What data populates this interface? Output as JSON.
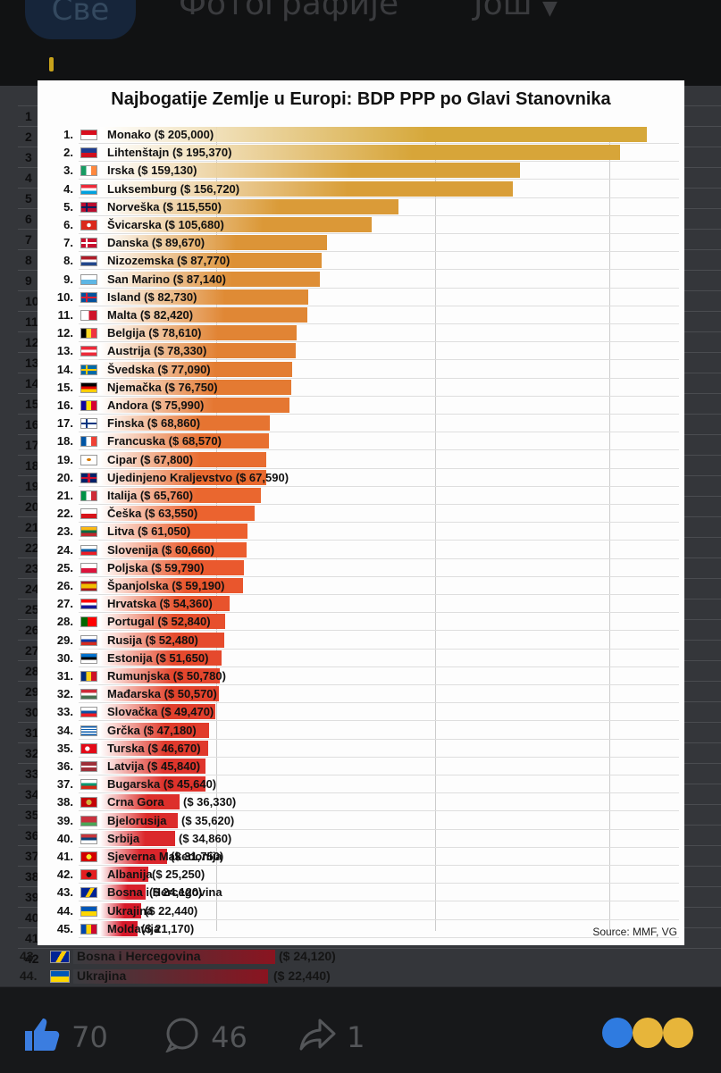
{
  "tabs": {
    "all": "Све",
    "photos": "Фотографије",
    "more": "Још"
  },
  "chart_data": {
    "type": "bar",
    "title": "Najbogatije Zemlje u Europi: BDP PPP po Glavi Stanovnika",
    "source": "Source: MMF, VG",
    "max": 205000,
    "items": [
      {
        "rank": "1.",
        "label": "Monako ($ 205,000)",
        "value": 205000,
        "flag": "monaco"
      },
      {
        "rank": "2.",
        "label": "Lihtenštajn ($ 195,370)",
        "value": 195370,
        "flag": "liechtenstein"
      },
      {
        "rank": "3.",
        "label": "Irska ($ 159,130)",
        "value": 159130,
        "flag": "ireland"
      },
      {
        "rank": "4.",
        "label": "Luksemburg ($ 156,720)",
        "value": 156720,
        "flag": "luxembourg"
      },
      {
        "rank": "5.",
        "label": "Norveška ($ 115,550)",
        "value": 115550,
        "flag": "norway"
      },
      {
        "rank": "6.",
        "label": "Švicarska ($ 105,680)",
        "value": 105680,
        "flag": "switzerland"
      },
      {
        "rank": "7.",
        "label": "Danska ($ 89,670)",
        "value": 89670,
        "flag": "denmark"
      },
      {
        "rank": "8.",
        "label": "Nizozemska ($ 87,770)",
        "value": 87770,
        "flag": "netherlands"
      },
      {
        "rank": "9.",
        "label": "San Marino ($ 87,140)",
        "value": 87140,
        "flag": "sanmarino"
      },
      {
        "rank": "10.",
        "label": "Island ($ 82,730)",
        "value": 82730,
        "flag": "iceland"
      },
      {
        "rank": "11.",
        "label": "Malta ($ 82,420)",
        "value": 82420,
        "flag": "malta"
      },
      {
        "rank": "12.",
        "label": "Belgija ($ 78,610)",
        "value": 78610,
        "flag": "belgium"
      },
      {
        "rank": "13.",
        "label": "Austrija ($ 78,330)",
        "value": 78330,
        "flag": "austria"
      },
      {
        "rank": "14.",
        "label": "Švedska ($ 77,090)",
        "value": 77090,
        "flag": "sweden"
      },
      {
        "rank": "15.",
        "label": "Njemačka ($ 76,750)",
        "value": 76750,
        "flag": "germany"
      },
      {
        "rank": "16.",
        "label": "Andora ($ 75,990)",
        "value": 75990,
        "flag": "andorra"
      },
      {
        "rank": "17.",
        "label": "Finska ($ 68,860)",
        "value": 68860,
        "flag": "finland"
      },
      {
        "rank": "18.",
        "label": "Francuska ($ 68,570)",
        "value": 68570,
        "flag": "france"
      },
      {
        "rank": "19.",
        "label": "Cipar ($ 67,800)",
        "value": 67800,
        "flag": "cyprus"
      },
      {
        "rank": "20.",
        "label": "Ujedinjeno Kraljevstvo ($ 67,590)",
        "value": 67590,
        "flag": "uk"
      },
      {
        "rank": "21.",
        "label": "Italija ($ 65,760)",
        "value": 65760,
        "flag": "italy"
      },
      {
        "rank": "22.",
        "label": "Češka ($ 63,550)",
        "value": 63550,
        "flag": "czechia"
      },
      {
        "rank": "23.",
        "label": "Litva ($ 61,050)",
        "value": 61050,
        "flag": "lithuania"
      },
      {
        "rank": "24.",
        "label": "Slovenija ($ 60,660)",
        "value": 60660,
        "flag": "slovenia"
      },
      {
        "rank": "25.",
        "label": "Poljska ($ 59,790)",
        "value": 59790,
        "flag": "poland"
      },
      {
        "rank": "26.",
        "label": "Španjolska ($ 59,190)",
        "value": 59190,
        "flag": "spain"
      },
      {
        "rank": "27.",
        "label": "Hrvatska ($ 54,360)",
        "value": 54360,
        "flag": "croatia"
      },
      {
        "rank": "28.",
        "label": "Portugal ($ 52,840)",
        "value": 52840,
        "flag": "portugal"
      },
      {
        "rank": "29.",
        "label": "Rusija ($ 52,480)",
        "value": 52480,
        "flag": "russia"
      },
      {
        "rank": "30.",
        "label": "Estonija ($ 51,650)",
        "value": 51650,
        "flag": "estonia"
      },
      {
        "rank": "31.",
        "label": "Rumunjska ($ 50,780)",
        "value": 50780,
        "flag": "romania"
      },
      {
        "rank": "32.",
        "label": "Mađarska ($ 50,570)",
        "value": 50570,
        "flag": "hungary"
      },
      {
        "rank": "33.",
        "label": "Slovačka ($ 49,470)",
        "value": 49470,
        "flag": "slovakia"
      },
      {
        "rank": "34.",
        "label": "Grčka ($ 47,180)",
        "value": 47180,
        "flag": "greece"
      },
      {
        "rank": "35.",
        "label": "Turska ($ 46,670)",
        "value": 46670,
        "flag": "turkey"
      },
      {
        "rank": "36.",
        "label": "Latvija ($ 45,840)",
        "value": 45840,
        "flag": "latvia"
      },
      {
        "rank": "37.",
        "label": "Bugarska ($ 45,640)",
        "value": 45640,
        "flag": "bulgaria"
      },
      {
        "rank": "38.",
        "label": "Crna Gora",
        "amount": "($ 36,330)",
        "value": 36330,
        "flag": "montenegro"
      },
      {
        "rank": "39.",
        "label": "Bjelorusija",
        "amount": "($ 35,620)",
        "value": 35620,
        "flag": "belarus"
      },
      {
        "rank": "40.",
        "label": "Srbija",
        "amount": "($ 34,860)",
        "value": 34860,
        "flag": "serbia"
      },
      {
        "rank": "41.",
        "label": "Sjeverna Makedonija",
        "amount": "($ 31,750)",
        "value": 31750,
        "flag": "macedonia"
      },
      {
        "rank": "42.",
        "label": "Albanija",
        "amount": "($ 25,250)",
        "value": 25250,
        "flag": "albania"
      },
      {
        "rank": "43.",
        "label": "Bosna i Hercegovina",
        "amount": "($ 24,120)",
        "value": 24120,
        "flag": "bosnia"
      },
      {
        "rank": "44.",
        "label": "Ukrajina",
        "amount": "($ 22,440)",
        "value": 22440,
        "flag": "ukraine"
      },
      {
        "rank": "45.",
        "label": "Moldavija",
        "amount": "($ 21,170)",
        "value": 21170,
        "flag": "moldova"
      }
    ]
  },
  "background": {
    "left_numbers": [
      "1",
      "2",
      "3",
      "4",
      "5",
      "6",
      "7",
      "8",
      "9",
      "10",
      "11",
      "12",
      "13",
      "14",
      "15",
      "16",
      "17",
      "18",
      "19",
      "20",
      "21",
      "22",
      "23",
      "24",
      "25",
      "26",
      "27",
      "28",
      "29",
      "30",
      "31",
      "32",
      "33",
      "34",
      "35",
      "36",
      "37",
      "38",
      "39",
      "40",
      "41",
      "42"
    ],
    "rows": [
      {
        "rank": "43.",
        "label": "Bosna i Hercegovina",
        "amount": "($ 24,120)",
        "flag": "bosnia"
      },
      {
        "rank": "44.",
        "label": "Ukrajina",
        "amount": "($ 22,440)",
        "flag": "ukraine"
      }
    ]
  },
  "actions": {
    "likes": "70",
    "comments": "46",
    "shares": "1"
  },
  "colors": {
    "gold": "#d6a83a",
    "red": "#d6182a"
  }
}
